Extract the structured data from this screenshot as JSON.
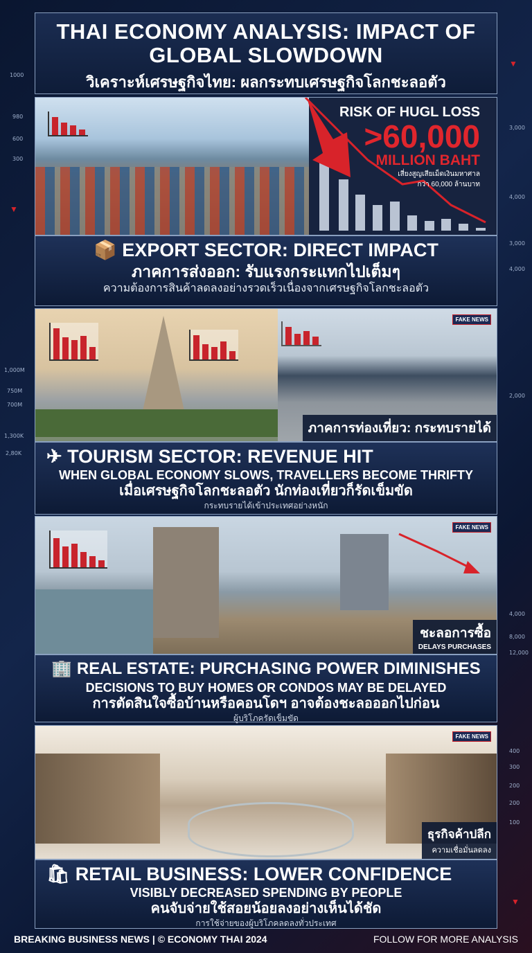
{
  "title": {
    "en": "THAI ECONOMY ANALYSIS: IMPACT OF GLOBAL SLOWDOWN",
    "th": "วิเคราะห์เศรษฐกิจไทย: ผลกระทบเศรษฐกิจโลกชะลอตัว"
  },
  "risk": {
    "label": "RISK OF HUGL LOSS",
    "amount": ">60,000",
    "unit": "MILLION BAHT",
    "th_line1": "เสี่ยงสูญเสียเม็ดเงินมหาศาล",
    "th_line2": "กว่า 60,000 ล้านบาท"
  },
  "sections": [
    {
      "icon": "package-icon",
      "heading": "EXPORT SECTOR: DIRECT IMPACT",
      "th": "ภาคการส่งออก: รับแรงกระแทกไปเต็มๆ",
      "note": "ความต้องการสินค้าลดลงอย่างรวดเร็วเนื่องจากเศรษฐกิจโลกชะลอตัว"
    },
    {
      "icon": "airplane-icon",
      "tag": "ภาคการท่องเที่ยว: กระทบรายได้",
      "heading": "TOURISM SECTOR: REVENUE HIT",
      "sub": "WHEN GLOBAL ECONOMY SLOWS, TRAVELLERS BECOME THRIFTY",
      "th": "เมื่อเศรษฐกิจโลกชะลอตัว นักท่องเที่ยวก็รัดเข็มขัด",
      "note": "กระทบรายได้เข้าประเทศอย่างหนัก",
      "badge": "FAKE NEWS"
    },
    {
      "icon": "building-icon",
      "tag": "ชะลอการซื้อ",
      "tag_sub": "DELAYS PURCHASES",
      "heading": "REAL ESTATE: PURCHASING POWER DIMINISHES",
      "sub": "DECISIONS TO BUY HOMES OR CONDOS MAY BE DELAYED",
      "th": "การตัดสินใจซื้อบ้านหรือคอนโดฯ อาจต้องชะลอออกไปก่อน",
      "note": "ผู้บริโภครัดเข็มขัด",
      "badge": "FAKE NEWS"
    },
    {
      "icon": "shopping-bags-icon",
      "tag": "ธุรกิจค้าปลีก",
      "tag_sub": "ความเชื่อมั่นลดลง",
      "heading": "RETAIL BUSINESS: LOWER CONFIDENCE",
      "sub": "VISIBLY DECREASED SPENDING BY PEOPLE",
      "th": "คนจับจ่ายใช้สอยน้อยลงอย่างเห็นได้ชัด",
      "note": "การใช้จ่ายของผู้บริโภคลดลงทั่วประเทศ",
      "badge": "FAKE NEWS"
    }
  ],
  "side_left": [
    "1000",
    "980",
    "600",
    "300",
    "1,000M",
    "750M",
    "700M",
    "1,300K",
    "2,80K"
  ],
  "side_right": [
    "3,000",
    "4,000",
    "3,000",
    "4,000",
    "2,000",
    "4,000",
    "8,000",
    "12,000",
    "400",
    "300",
    "200",
    "200",
    "100"
  ],
  "footer": {
    "left": "BREAKING BUSINESS NEWS | © ECONOMY THAI 2024",
    "right": "FOLLOW FOR MORE ANALYSIS"
  },
  "colors": {
    "accent": "#d8232a",
    "navy": "#0d1a35"
  }
}
